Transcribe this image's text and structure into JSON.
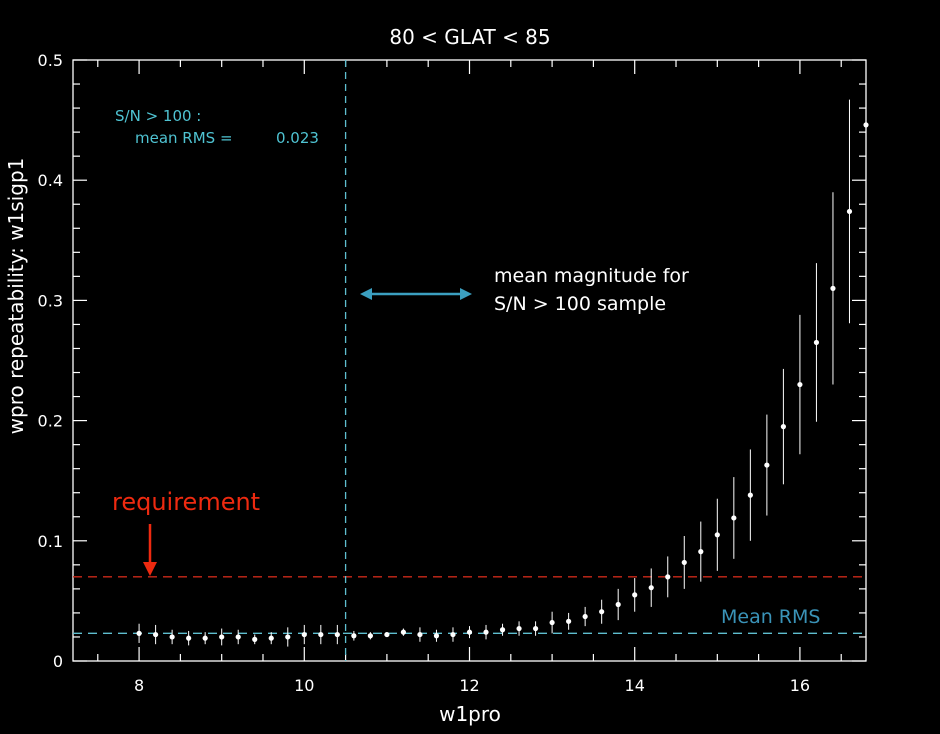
{
  "chart_data": {
    "type": "scatter",
    "title": "80 < GLAT < 85",
    "xlabel": "w1pro",
    "ylabel": "wpro repeatability: w1sigp1",
    "xlim": [
      7.2,
      16.8
    ],
    "ylim": [
      0,
      0.5
    ],
    "xticks": [
      8,
      10,
      12,
      14,
      16
    ],
    "xtick_labels": [
      "8",
      "10",
      "12",
      "14",
      "16"
    ],
    "yticks": [
      0,
      0.1,
      0.2,
      0.3,
      0.4,
      0.5
    ],
    "ytick_labels": [
      "0",
      "0.1",
      "0.2",
      "0.3",
      "0.4",
      "0.5"
    ],
    "grid": false,
    "series": [
      {
        "x": [
          8.0,
          8.2,
          8.4,
          8.6,
          8.8,
          9.0,
          9.2,
          9.4,
          9.6,
          9.8,
          10.0,
          10.2,
          10.4,
          10.6,
          10.8,
          11.0,
          11.2,
          11.4,
          11.6,
          11.8,
          12.0,
          12.2,
          12.4,
          12.6,
          12.8,
          13.0,
          13.2,
          13.4,
          13.6,
          13.8,
          14.0,
          14.2,
          14.4,
          14.6,
          14.8,
          15.0,
          15.2,
          15.4,
          15.6,
          15.8,
          16.0,
          16.2,
          16.4,
          16.6,
          16.8
        ],
        "y": [
          0.023,
          0.022,
          0.02,
          0.019,
          0.019,
          0.02,
          0.02,
          0.018,
          0.019,
          0.02,
          0.022,
          0.022,
          0.022,
          0.021,
          0.021,
          0.022,
          0.024,
          0.022,
          0.021,
          0.022,
          0.024,
          0.024,
          0.026,
          0.027,
          0.027,
          0.032,
          0.033,
          0.037,
          0.041,
          0.047,
          0.055,
          0.061,
          0.07,
          0.082,
          0.091,
          0.105,
          0.119,
          0.138,
          0.163,
          0.195,
          0.23,
          0.265,
          0.31,
          0.374,
          0.446
        ],
        "err": [
          0.008,
          0.008,
          0.006,
          0.006,
          0.005,
          0.007,
          0.006,
          0.004,
          0.005,
          0.008,
          0.008,
          0.008,
          0.008,
          0.004,
          0.003,
          0.002,
          0.003,
          0.006,
          0.005,
          0.006,
          0.005,
          0.006,
          0.005,
          0.006,
          0.006,
          0.009,
          0.007,
          0.008,
          0.01,
          0.013,
          0.014,
          0.016,
          0.017,
          0.022,
          0.025,
          0.03,
          0.034,
          0.038,
          0.042,
          0.048,
          0.058,
          0.066,
          0.08,
          0.093,
          0.0
        ]
      }
    ],
    "reference_lines": {
      "requirement_y": 0.07,
      "mean_rms_y": 0.023,
      "mean_magnitude_x": 10.5
    },
    "annotations": {
      "sn_label": "S/N > 100 :",
      "mean_rms_label": "mean RMS =",
      "mean_rms_value": "0.023",
      "mean_magnitude_line1": "mean magnitude for",
      "mean_magnitude_line2": "S/N > 100 sample",
      "requirement_label": "requirement",
      "mean_rms_line_label": "Mean RMS"
    },
    "colors": {
      "background": "#000000",
      "axes": "#ffffff",
      "points": "#ffffff",
      "requirement": "#cc2a1a",
      "requirement_text": "#ee2a10",
      "mean_rms_line": "#5fbfd0",
      "annotation_cyan": "#4fc3d2",
      "arrow": "#3b9fc0",
      "mean_rms_text": "#3a93b8"
    }
  }
}
